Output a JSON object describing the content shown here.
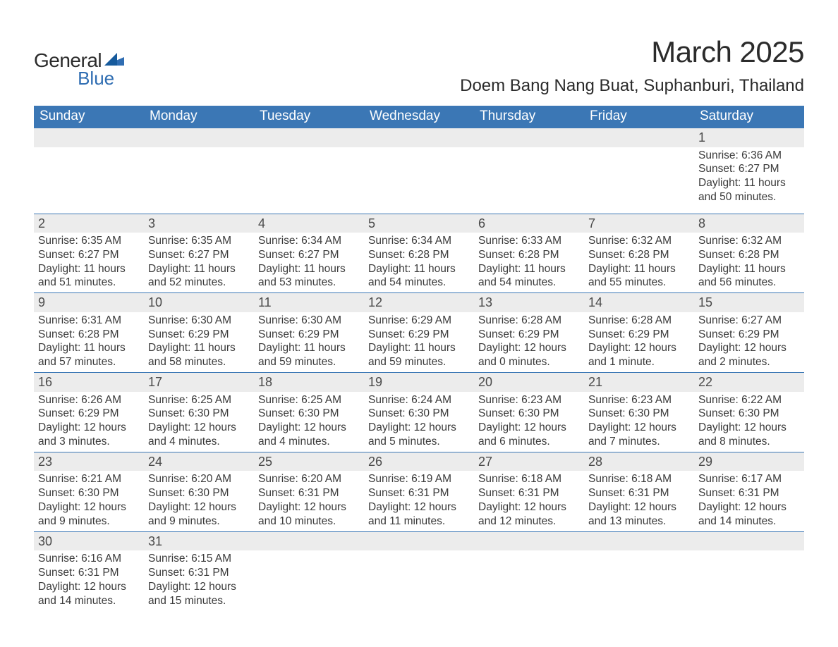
{
  "brand": {
    "part1": "General",
    "part2": "Blue"
  },
  "title": "March 2025",
  "location": "Doem Bang Nang Buat, Suphanburi, Thailand",
  "colors": {
    "header_bg": "#3b77b5",
    "header_text": "#ffffff",
    "daynum_bg": "#ececec",
    "row_border": "#3b77b5",
    "body_text": "#3a3a3a",
    "brand_blue": "#2f6db2",
    "page_bg": "#ffffff"
  },
  "weekdays": [
    "Sunday",
    "Monday",
    "Tuesday",
    "Wednesday",
    "Thursday",
    "Friday",
    "Saturday"
  ],
  "weeks": [
    [
      null,
      null,
      null,
      null,
      null,
      null,
      {
        "n": "1",
        "sr": "Sunrise: 6:36 AM",
        "ss": "Sunset: 6:27 PM",
        "dl": "Daylight: 11 hours and 50 minutes."
      }
    ],
    [
      {
        "n": "2",
        "sr": "Sunrise: 6:35 AM",
        "ss": "Sunset: 6:27 PM",
        "dl": "Daylight: 11 hours and 51 minutes."
      },
      {
        "n": "3",
        "sr": "Sunrise: 6:35 AM",
        "ss": "Sunset: 6:27 PM",
        "dl": "Daylight: 11 hours and 52 minutes."
      },
      {
        "n": "4",
        "sr": "Sunrise: 6:34 AM",
        "ss": "Sunset: 6:27 PM",
        "dl": "Daylight: 11 hours and 53 minutes."
      },
      {
        "n": "5",
        "sr": "Sunrise: 6:34 AM",
        "ss": "Sunset: 6:28 PM",
        "dl": "Daylight: 11 hours and 54 minutes."
      },
      {
        "n": "6",
        "sr": "Sunrise: 6:33 AM",
        "ss": "Sunset: 6:28 PM",
        "dl": "Daylight: 11 hours and 54 minutes."
      },
      {
        "n": "7",
        "sr": "Sunrise: 6:32 AM",
        "ss": "Sunset: 6:28 PM",
        "dl": "Daylight: 11 hours and 55 minutes."
      },
      {
        "n": "8",
        "sr": "Sunrise: 6:32 AM",
        "ss": "Sunset: 6:28 PM",
        "dl": "Daylight: 11 hours and 56 minutes."
      }
    ],
    [
      {
        "n": "9",
        "sr": "Sunrise: 6:31 AM",
        "ss": "Sunset: 6:28 PM",
        "dl": "Daylight: 11 hours and 57 minutes."
      },
      {
        "n": "10",
        "sr": "Sunrise: 6:30 AM",
        "ss": "Sunset: 6:29 PM",
        "dl": "Daylight: 11 hours and 58 minutes."
      },
      {
        "n": "11",
        "sr": "Sunrise: 6:30 AM",
        "ss": "Sunset: 6:29 PM",
        "dl": "Daylight: 11 hours and 59 minutes."
      },
      {
        "n": "12",
        "sr": "Sunrise: 6:29 AM",
        "ss": "Sunset: 6:29 PM",
        "dl": "Daylight: 11 hours and 59 minutes."
      },
      {
        "n": "13",
        "sr": "Sunrise: 6:28 AM",
        "ss": "Sunset: 6:29 PM",
        "dl": "Daylight: 12 hours and 0 minutes."
      },
      {
        "n": "14",
        "sr": "Sunrise: 6:28 AM",
        "ss": "Sunset: 6:29 PM",
        "dl": "Daylight: 12 hours and 1 minute."
      },
      {
        "n": "15",
        "sr": "Sunrise: 6:27 AM",
        "ss": "Sunset: 6:29 PM",
        "dl": "Daylight: 12 hours and 2 minutes."
      }
    ],
    [
      {
        "n": "16",
        "sr": "Sunrise: 6:26 AM",
        "ss": "Sunset: 6:29 PM",
        "dl": "Daylight: 12 hours and 3 minutes."
      },
      {
        "n": "17",
        "sr": "Sunrise: 6:25 AM",
        "ss": "Sunset: 6:30 PM",
        "dl": "Daylight: 12 hours and 4 minutes."
      },
      {
        "n": "18",
        "sr": "Sunrise: 6:25 AM",
        "ss": "Sunset: 6:30 PM",
        "dl": "Daylight: 12 hours and 4 minutes."
      },
      {
        "n": "19",
        "sr": "Sunrise: 6:24 AM",
        "ss": "Sunset: 6:30 PM",
        "dl": "Daylight: 12 hours and 5 minutes."
      },
      {
        "n": "20",
        "sr": "Sunrise: 6:23 AM",
        "ss": "Sunset: 6:30 PM",
        "dl": "Daylight: 12 hours and 6 minutes."
      },
      {
        "n": "21",
        "sr": "Sunrise: 6:23 AM",
        "ss": "Sunset: 6:30 PM",
        "dl": "Daylight: 12 hours and 7 minutes."
      },
      {
        "n": "22",
        "sr": "Sunrise: 6:22 AM",
        "ss": "Sunset: 6:30 PM",
        "dl": "Daylight: 12 hours and 8 minutes."
      }
    ],
    [
      {
        "n": "23",
        "sr": "Sunrise: 6:21 AM",
        "ss": "Sunset: 6:30 PM",
        "dl": "Daylight: 12 hours and 9 minutes."
      },
      {
        "n": "24",
        "sr": "Sunrise: 6:20 AM",
        "ss": "Sunset: 6:30 PM",
        "dl": "Daylight: 12 hours and 9 minutes."
      },
      {
        "n": "25",
        "sr": "Sunrise: 6:20 AM",
        "ss": "Sunset: 6:31 PM",
        "dl": "Daylight: 12 hours and 10 minutes."
      },
      {
        "n": "26",
        "sr": "Sunrise: 6:19 AM",
        "ss": "Sunset: 6:31 PM",
        "dl": "Daylight: 12 hours and 11 minutes."
      },
      {
        "n": "27",
        "sr": "Sunrise: 6:18 AM",
        "ss": "Sunset: 6:31 PM",
        "dl": "Daylight: 12 hours and 12 minutes."
      },
      {
        "n": "28",
        "sr": "Sunrise: 6:18 AM",
        "ss": "Sunset: 6:31 PM",
        "dl": "Daylight: 12 hours and 13 minutes."
      },
      {
        "n": "29",
        "sr": "Sunrise: 6:17 AM",
        "ss": "Sunset: 6:31 PM",
        "dl": "Daylight: 12 hours and 14 minutes."
      }
    ],
    [
      {
        "n": "30",
        "sr": "Sunrise: 6:16 AM",
        "ss": "Sunset: 6:31 PM",
        "dl": "Daylight: 12 hours and 14 minutes."
      },
      {
        "n": "31",
        "sr": "Sunrise: 6:15 AM",
        "ss": "Sunset: 6:31 PM",
        "dl": "Daylight: 12 hours and 15 minutes."
      },
      null,
      null,
      null,
      null,
      null
    ]
  ]
}
